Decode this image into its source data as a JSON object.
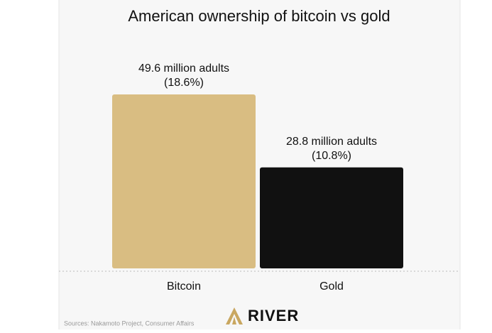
{
  "chart_data": {
    "type": "bar",
    "title": "American ownership of bitcoin vs gold",
    "categories": [
      "Bitcoin",
      "Gold"
    ],
    "values": [
      49.6,
      28.8
    ],
    "value_labels": [
      "49.6 million adults",
      "28.8 million adults"
    ],
    "shares": [
      18.6,
      10.8
    ],
    "share_labels": [
      "(18.6%)",
      "(10.8%)"
    ],
    "colors": [
      "#d9bd82",
      "#111111"
    ],
    "source": "Sources: Nakamoto Project, Consumer Affairs",
    "brand": "RIVER"
  }
}
